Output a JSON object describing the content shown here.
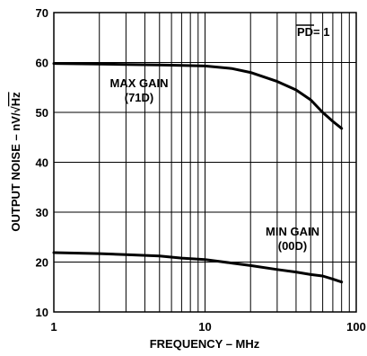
{
  "chart_data": {
    "type": "line",
    "title": "",
    "xlabel": "FREQUENCY – MHz",
    "ylabel_main": "OUTPUT NOISE – nV/",
    "ylabel_sqrt": "√",
    "ylabel_unit": "Hz",
    "xscale": "log",
    "xlim": [
      1,
      100
    ],
    "ylim": [
      10,
      70
    ],
    "grid": true,
    "xticks": [
      "1",
      "10",
      "100"
    ],
    "yticks": [
      "10",
      "20",
      "30",
      "40",
      "50",
      "60",
      "70"
    ],
    "annotations": {
      "pd_label": "PD",
      "pd_value": " = 1",
      "max_gain_line1": "MAX GAIN",
      "max_gain_line2": "(71D)",
      "min_gain_line1": "MIN GAIN",
      "min_gain_line2": "(00D)"
    },
    "series": [
      {
        "x": [
          1,
          2,
          3,
          5,
          7,
          10,
          15,
          20,
          30,
          40,
          50,
          60,
          70,
          80
        ],
        "y": [
          59.8,
          59.7,
          59.6,
          59.5,
          59.4,
          59.3,
          58.8,
          58.0,
          56.2,
          54.5,
          52.5,
          50.0,
          48.2,
          46.8
        ]
      },
      {
        "x": [
          1,
          2,
          3,
          5,
          7,
          10,
          15,
          20,
          30,
          40,
          50,
          60,
          70,
          80
        ],
        "y": [
          21.9,
          21.7,
          21.5,
          21.2,
          20.8,
          20.5,
          19.8,
          19.3,
          18.5,
          18.0,
          17.5,
          17.2,
          16.6,
          16.0
        ]
      }
    ]
  }
}
